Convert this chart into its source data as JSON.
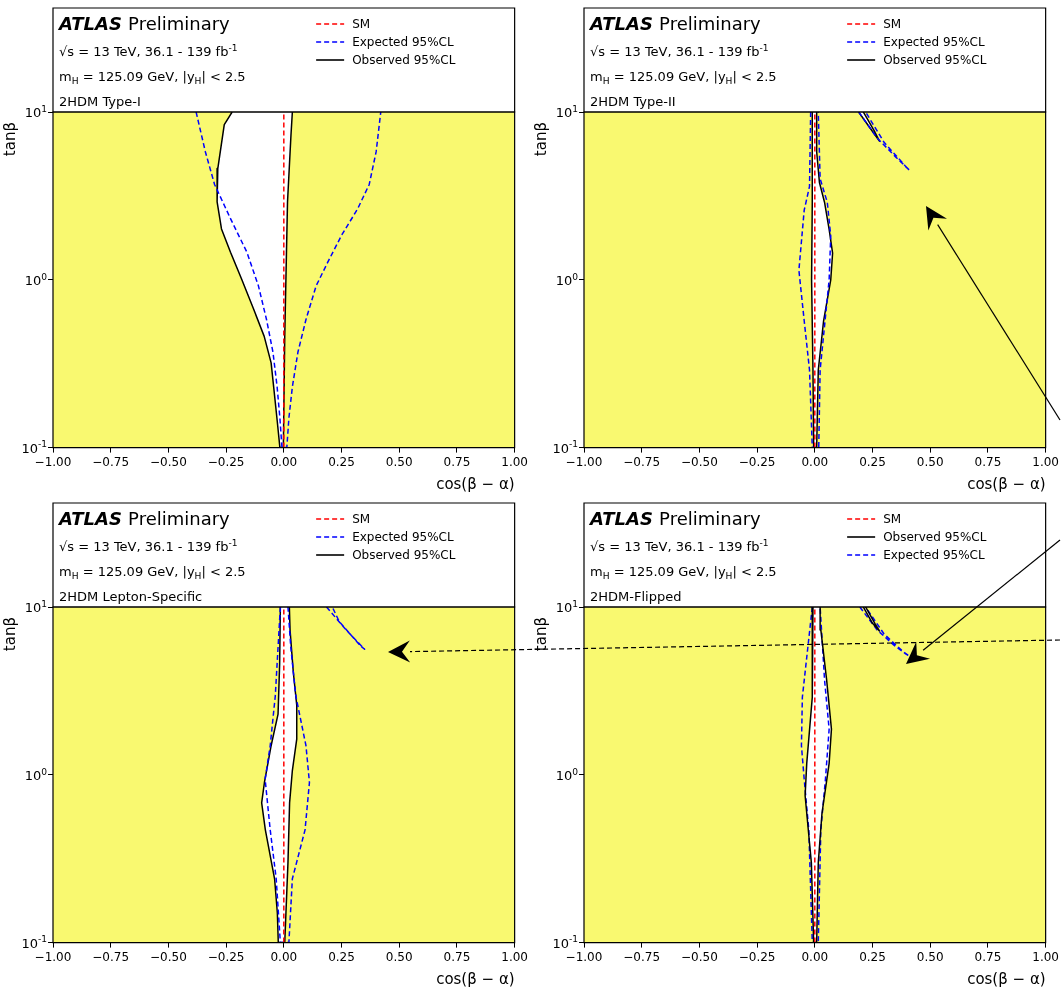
{
  "chart_data": [
    {
      "type": "line",
      "title": "ATLAS Preliminary",
      "subtitle": "2HDM Type-I",
      "annotations": [
        "√s = 13 TeV, 36.1 - 139 fb$^{-1}$",
        "m$_{H}$ = 125.09 GeV, |y$_{H}$| < 2.5"
      ],
      "xlabel": "cos(β − α)",
      "ylabel": "tanβ",
      "log": "y",
      "legend": "top right",
      "marker": "none",
      "xlim": [
        -1,
        1
      ],
      "xticks": [
        {
          "value": -1,
          "label": "−1.00"
        },
        {
          "value": -0.75,
          "label": "−0.75"
        },
        {
          "value": -0.5,
          "label": "−0.50"
        },
        {
          "value": -0.25,
          "label": "−0.25"
        },
        {
          "value": 0,
          "label": "0.00"
        },
        {
          "value": 0.25,
          "label": "0.25"
        },
        {
          "value": 0.5,
          "label": "0.50"
        },
        {
          "value": 0.75,
          "label": "0.75"
        },
        {
          "value": 1,
          "label": "1.00"
        }
      ],
      "ylim": [
        0.1,
        10
      ],
      "yticks": [
        {
          "value": 0.1,
          "label": "10$^{-1}$"
        },
        {
          "value": 1,
          "label": "10$^{0}$"
        },
        {
          "value": 10,
          "label": "10$^{1}$"
        }
      ],
      "bands": [
        {
          "axis": "x",
          "from": -1,
          "to": 1,
          "color": "#f9f970"
        }
      ],
      "series": [
        {
          "name": "SM",
          "color": "#ff0000",
          "line_style": "dashed",
          "x": [
            0,
            0
          ],
          "values": [
            0.1,
            10
          ]
        },
        {
          "name": "Expected 95%CL",
          "color": "#0000ff",
          "line_style": "dashed",
          "x": [
            -0.38,
            -0.34,
            -0.3,
            -0.23,
            -0.16,
            -0.11,
            -0.075,
            -0.047,
            -0.029,
            -0.017,
            -0.008,
            0.013,
            0.022,
            0.037,
            0.061,
            0.096,
            0.14,
            0.19,
            0.25,
            0.32,
            0.37,
            0.4,
            0.42
          ],
          "values": [
            10,
            5.8,
            3.7,
            2.3,
            1.46,
            0.92,
            0.58,
            0.37,
            0.23,
            0.15,
            0.1,
            0.1,
            0.15,
            0.23,
            0.37,
            0.58,
            0.92,
            1.27,
            1.84,
            2.65,
            3.7,
            5.8,
            10
          ]
        },
        {
          "name": "Observed 95%CL",
          "type": "area",
          "color": "#000000",
          "line_style": "solid",
          "x": [
            -0.224,
            -0.258,
            -0.286,
            -0.289,
            -0.27,
            -0.231,
            -0.183,
            -0.131,
            -0.085,
            -0.055,
            -0.044,
            -0.029,
            -0.017,
            -0.002,
            0.004,
            0.016,
            0.031,
            0.037
          ],
          "values": [
            10,
            8.4,
            4.6,
            2.91,
            2.01,
            1.46,
            1.01,
            0.67,
            0.46,
            0.32,
            0.23,
            0.146,
            0.1,
            0.1,
            0.46,
            2.91,
            7.3,
            10
          ]
        }
      ]
    },
    {
      "type": "line",
      "title": "ATLAS Preliminary",
      "subtitle": "2HDM Type-II",
      "annotations": [
        "√s = 13 TeV, 36.1 - 139 fb$^{-1}$",
        "m$_{H}$ = 125.09 GeV, |y$_{H}$| < 2.5"
      ],
      "xlabel": "cos(β − α)",
      "ylabel": "tanβ",
      "log": "y",
      "legend": "top right",
      "marker": "none",
      "xlim": [
        -1,
        1
      ],
      "xticks": [
        {
          "value": -1,
          "label": "−1.00"
        },
        {
          "value": -0.75,
          "label": "−0.75"
        },
        {
          "value": -0.5,
          "label": "−0.50"
        },
        {
          "value": -0.25,
          "label": "−0.25"
        },
        {
          "value": 0,
          "label": "0.00"
        },
        {
          "value": 0.25,
          "label": "0.25"
        },
        {
          "value": 0.5,
          "label": "0.50"
        },
        {
          "value": 0.75,
          "label": "0.75"
        },
        {
          "value": 1,
          "label": "1.00"
        }
      ],
      "ylim": [
        0.1,
        10
      ],
      "yticks": [
        {
          "value": 0.1,
          "label": "10$^{-1}$"
        },
        {
          "value": 1,
          "label": "10$^{0}$"
        },
        {
          "value": 10,
          "label": "10$^{1}$"
        }
      ],
      "bands": [
        {
          "axis": "x",
          "from": -1,
          "to": 1,
          "color": "#f9f970"
        }
      ],
      "series": [
        {
          "name": "SM",
          "color": "#ff0000",
          "line_style": "dashed",
          "x": [
            0,
            0
          ],
          "values": [
            0.1,
            10
          ]
        },
        {
          "name": "Expected 95%CL",
          "color": "#0000ff",
          "line_style": "dashed",
          "x": [
            -0.018,
            -0.023,
            -0.046,
            -0.069,
            -0.046,
            -0.023,
            -0.011,
            0.017,
            0.023,
            0.062,
            0.069,
            0.054,
            0.023,
            0.015,
            null,
            0.19,
            0.27,
            0.35,
            0.41,
            0.39,
            0.3,
            0.22
          ],
          "values": [
            10,
            3.6,
            2.6,
            1.14,
            0.57,
            0.29,
            0.1,
            0.1,
            0.29,
            1.0,
            1.82,
            2.9,
            4.0,
            10,
            null,
            10,
            7.0,
            5.4,
            4.5,
            4.8,
            6.6,
            10
          ]
        },
        {
          "name": "Observed 95%CL",
          "type": "area",
          "color": "#000000",
          "line_style": "solid",
          "x": [
            -0.011,
            -0.011,
            -0.014,
            -0.008,
            -0.005,
            0.008,
            0.015,
            0.038,
            0.069,
            0.077,
            0.062,
            0.042,
            0.02,
            0.008,
            0.008,
            null,
            0.19,
            0.24,
            0.28,
            0.26,
            0.21
          ],
          "values": [
            10,
            2.9,
            1.0,
            0.29,
            0.1,
            0.1,
            0.29,
            0.57,
            1.0,
            1.44,
            2.0,
            2.9,
            3.8,
            5.8,
            10,
            null,
            10,
            8.0,
            6.7,
            7.6,
            10
          ]
        }
      ]
    },
    {
      "type": "line",
      "title": "ATLAS Preliminary",
      "subtitle": "2HDM Lepton-Specific",
      "annotations": [
        "√s = 13 TeV, 36.1 - 139 fb$^{-1}$",
        "m$_{H}$ = 125.09 GeV, |y$_{H}$| < 2.5"
      ],
      "xlabel": "cos(β − α)",
      "ylabel": "tanβ",
      "log": "y",
      "legend": "top right",
      "marker": "none",
      "xlim": [
        -1,
        1
      ],
      "xticks": [
        {
          "value": -1,
          "label": "−1.00"
        },
        {
          "value": -0.75,
          "label": "−0.75"
        },
        {
          "value": -0.5,
          "label": "−0.50"
        },
        {
          "value": -0.25,
          "label": "−0.25"
        },
        {
          "value": 0,
          "label": "0.00"
        },
        {
          "value": 0.25,
          "label": "0.25"
        },
        {
          "value": 0.5,
          "label": "0.50"
        },
        {
          "value": 0.75,
          "label": "0.75"
        },
        {
          "value": 1,
          "label": "1.00"
        }
      ],
      "ylim": [
        0.1,
        10
      ],
      "yticks": [
        {
          "value": 0.1,
          "label": "10$^{-1}$"
        },
        {
          "value": 1,
          "label": "10$^{0}$"
        },
        {
          "value": 10,
          "label": "10$^{1}$"
        }
      ],
      "bands": [
        {
          "axis": "x",
          "from": -1,
          "to": 1,
          "color": "#f9f970"
        }
      ],
      "series": [
        {
          "name": "SM",
          "color": "#ff0000",
          "line_style": "dashed",
          "x": [
            0,
            0
          ],
          "values": [
            0.1,
            10
          ]
        },
        {
          "name": "Expected 95%CL",
          "color": "#0000ff",
          "line_style": "dashed",
          "x": [
            -0.015,
            -0.037,
            -0.059,
            -0.081,
            -0.059,
            -0.033,
            -0.015,
            0.022,
            0.037,
            0.092,
            0.111,
            0.096,
            0.052,
            0.03,
            0.018,
            null,
            0.185,
            0.27,
            0.35,
            0.33,
            0.24,
            0.21
          ],
          "values": [
            10,
            2.95,
            1.49,
            0.94,
            0.47,
            0.24,
            0.1,
            0.1,
            0.24,
            0.47,
            0.9,
            1.49,
            2.95,
            5.8,
            10,
            null,
            10,
            7.3,
            5.6,
            5.9,
            8.2,
            10
          ]
        },
        {
          "name": "Observed 95%CL",
          "type": "area",
          "color": "#000000",
          "line_style": "solid",
          "x": [
            -0.015,
            -0.018,
            -0.025,
            -0.055,
            -0.084,
            -0.096,
            -0.08,
            -0.04,
            -0.028,
            -0.024,
            0.004,
            0.018,
            0.025,
            0.037,
            0.056,
            0.056,
            0.041,
            0.027,
            0.024
          ],
          "values": [
            10,
            4.6,
            2.3,
            1.49,
            0.9,
            0.68,
            0.47,
            0.24,
            0.15,
            0.1,
            0.1,
            0.3,
            0.68,
            1.06,
            1.63,
            2.6,
            4.1,
            7.3,
            10
          ]
        }
      ]
    },
    {
      "type": "line",
      "title": "ATLAS Preliminary",
      "subtitle": "2HDM-Flipped",
      "annotations": [
        "√s = 13 TeV, 36.1 - 139 fb$^{-1}$",
        "m$_{H}$ = 125.09 GeV, |y$_{H}$| < 2.5"
      ],
      "xlabel": "cos(β − α)",
      "ylabel": "tanβ",
      "log": "y",
      "legend": "top right",
      "marker": "none",
      "xlim": [
        -1,
        1
      ],
      "xticks": [
        {
          "value": -1,
          "label": "−1.00"
        },
        {
          "value": -0.75,
          "label": "−0.75"
        },
        {
          "value": -0.5,
          "label": "−0.50"
        },
        {
          "value": -0.25,
          "label": "−0.25"
        },
        {
          "value": 0,
          "label": "0.00"
        },
        {
          "value": 0.25,
          "label": "0.25"
        },
        {
          "value": 0.5,
          "label": "0.50"
        },
        {
          "value": 0.75,
          "label": "0.75"
        },
        {
          "value": 1,
          "label": "1.00"
        }
      ],
      "ylim": [
        0.1,
        10
      ],
      "yticks": [
        {
          "value": 0.1,
          "label": "10$^{-1}$"
        },
        {
          "value": 1,
          "label": "10$^{0}$"
        },
        {
          "value": 10,
          "label": "10$^{1}$"
        }
      ],
      "bands": [
        {
          "axis": "x",
          "from": -1,
          "to": 1,
          "color": "#f9f970"
        }
      ],
      "series": [
        {
          "name": "SM",
          "color": "#ff0000",
          "line_style": "dashed",
          "x": [
            0,
            0
          ],
          "values": [
            0.1,
            10
          ]
        },
        {
          "name": "Observed 95%CL",
          "type": "area",
          "color": "#000000",
          "line_style": "solid",
          "x": [
            -0.008,
            -0.011,
            -0.035,
            -0.042,
            -0.015,
            -0.005,
            0.008,
            0.015,
            0.031,
            0.062,
            0.072,
            0.051,
            0.026,
            0.023,
            null,
            0.21,
            0.25,
            0.28,
            0.26,
            0.22
          ],
          "values": [
            10,
            2.9,
            1.17,
            0.75,
            0.3,
            0.1,
            0.1,
            0.3,
            0.59,
            1.17,
            1.87,
            3.7,
            7.3,
            10,
            null,
            10,
            8.0,
            7.2,
            8.0,
            10
          ]
        },
        {
          "name": "Expected 95%CL",
          "color": "#0000ff",
          "line_style": "dashed",
          "x": [
            -0.011,
            -0.054,
            -0.058,
            -0.046,
            -0.026,
            -0.011,
            0.015,
            0.026,
            0.046,
            0.062,
            0.042,
            0.023,
            null,
            0.195,
            0.27,
            0.35,
            0.41,
            0.39,
            0.3,
            0.22
          ],
          "values": [
            10,
            2.9,
            1.49,
            0.94,
            0.47,
            0.1,
            0.1,
            0.47,
            0.94,
            1.87,
            3.7,
            10,
            null,
            10,
            7.3,
            5.8,
            5.1,
            5.3,
            6.9,
            10
          ]
        }
      ]
    }
  ]
}
